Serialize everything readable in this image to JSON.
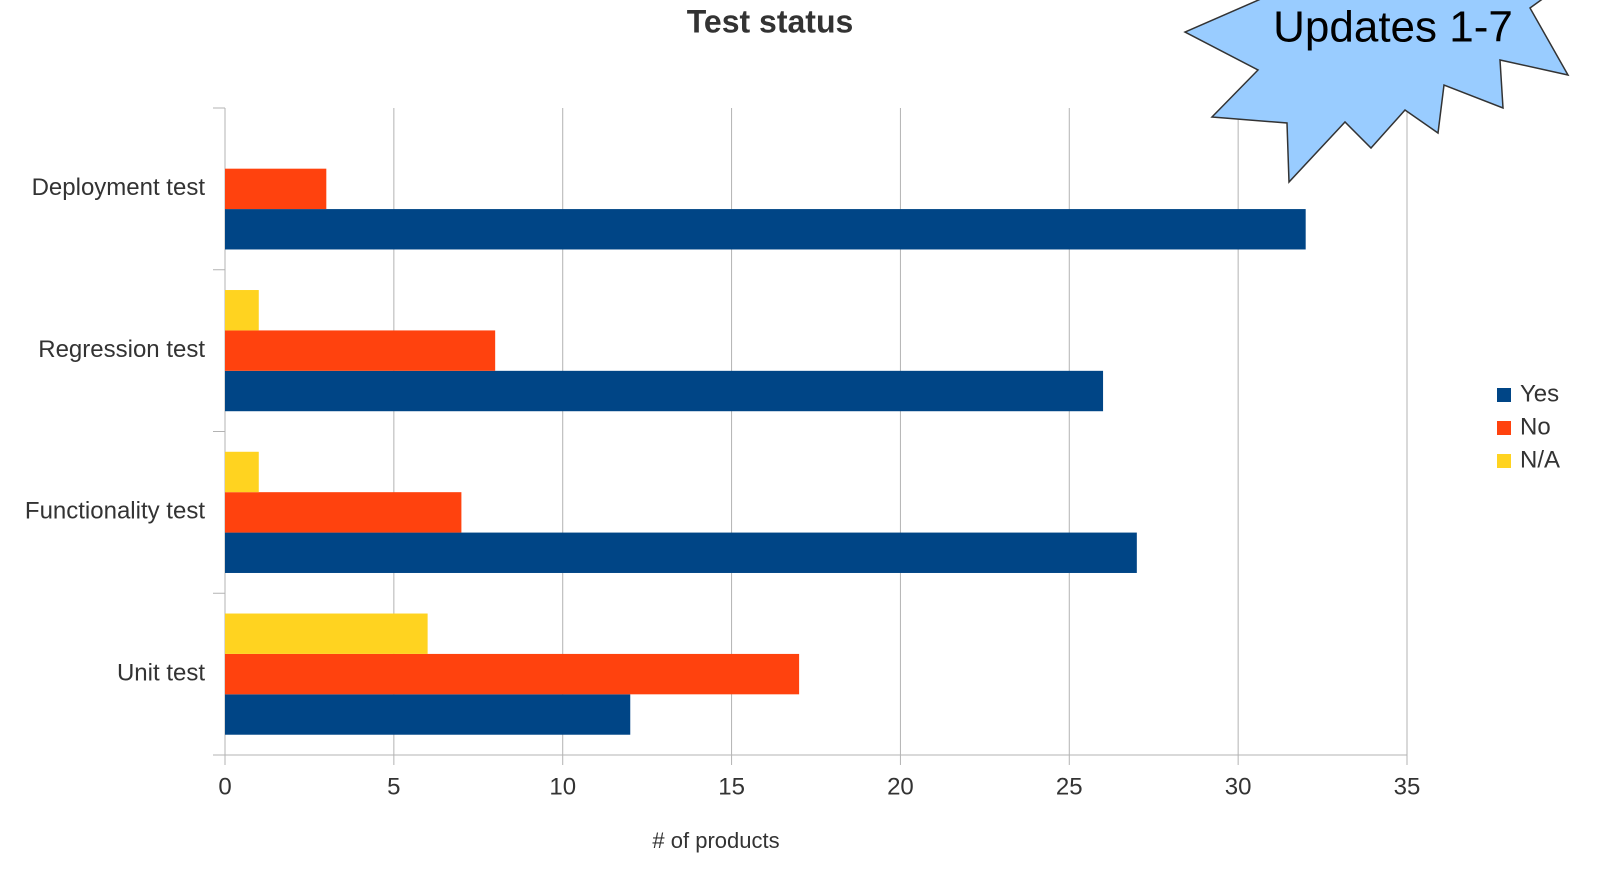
{
  "chart_data": {
    "type": "hbar",
    "title": "Test status",
    "annotation": "Updates 1-7",
    "categories": [
      "Unit test",
      "Functionality test",
      "Regression test",
      "Deployment test"
    ],
    "series": [
      {
        "name": "Yes",
        "color": "#004586",
        "values": [
          12,
          27,
          26,
          32
        ]
      },
      {
        "name": "No",
        "color": "#ff420e",
        "values": [
          17,
          7,
          8,
          3
        ]
      },
      {
        "name": "N/A",
        "color": "#ffd320",
        "values": [
          6,
          1,
          1,
          0
        ]
      }
    ],
    "xlabel": "# of products",
    "xlim": [
      0,
      35
    ],
    "xticks": [
      0,
      5,
      10,
      15,
      20,
      25,
      30,
      35
    ],
    "grid": true,
    "legend": "right"
  }
}
